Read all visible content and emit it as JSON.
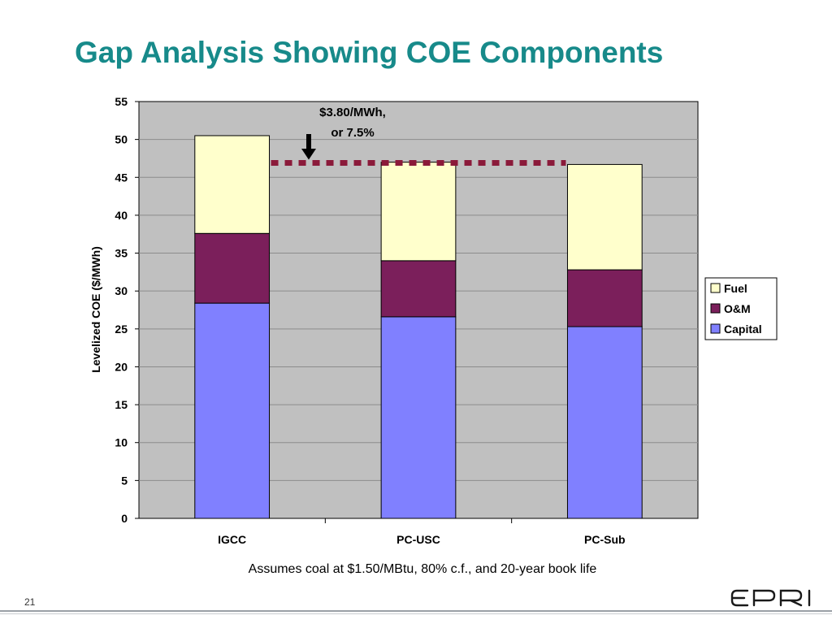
{
  "slide": {
    "title": "Gap Analysis Showing COE Components",
    "footnote": "Assumes coal at $1.50/MBtu, 80% c.f., and 20-year book life",
    "page_number": "21",
    "logo_text": "EPRI"
  },
  "chart_data": {
    "type": "bar",
    "stacked": true,
    "title": "",
    "xlabel": "",
    "ylabel": "Levelized COE ($/MWh)",
    "ylim": [
      0,
      55
    ],
    "yticks": [
      0,
      5,
      10,
      15,
      20,
      25,
      30,
      35,
      40,
      45,
      50,
      55
    ],
    "grid": true,
    "legend_position": "right",
    "categories": [
      "IGCC",
      "PC-USC",
      "PC-Sub"
    ],
    "series": [
      {
        "name": "Capital",
        "color": "#8080ff",
        "values": [
          28.4,
          26.6,
          25.3
        ]
      },
      {
        "name": "O&M",
        "color": "#7b1f5b",
        "values": [
          9.2,
          7.4,
          7.5
        ]
      },
      {
        "name": "Fuel",
        "color": "#ffffcc",
        "values": [
          12.9,
          13.0,
          13.9
        ]
      }
    ],
    "legend_order": [
      "Fuel",
      "O&M",
      "Capital"
    ],
    "annotation": {
      "lines": [
        "$3.80/MWh,",
        "or 7.5%"
      ],
      "reference_value": 46.8,
      "arrow_color": "#000000",
      "line_color": "#8b1a3a"
    }
  }
}
